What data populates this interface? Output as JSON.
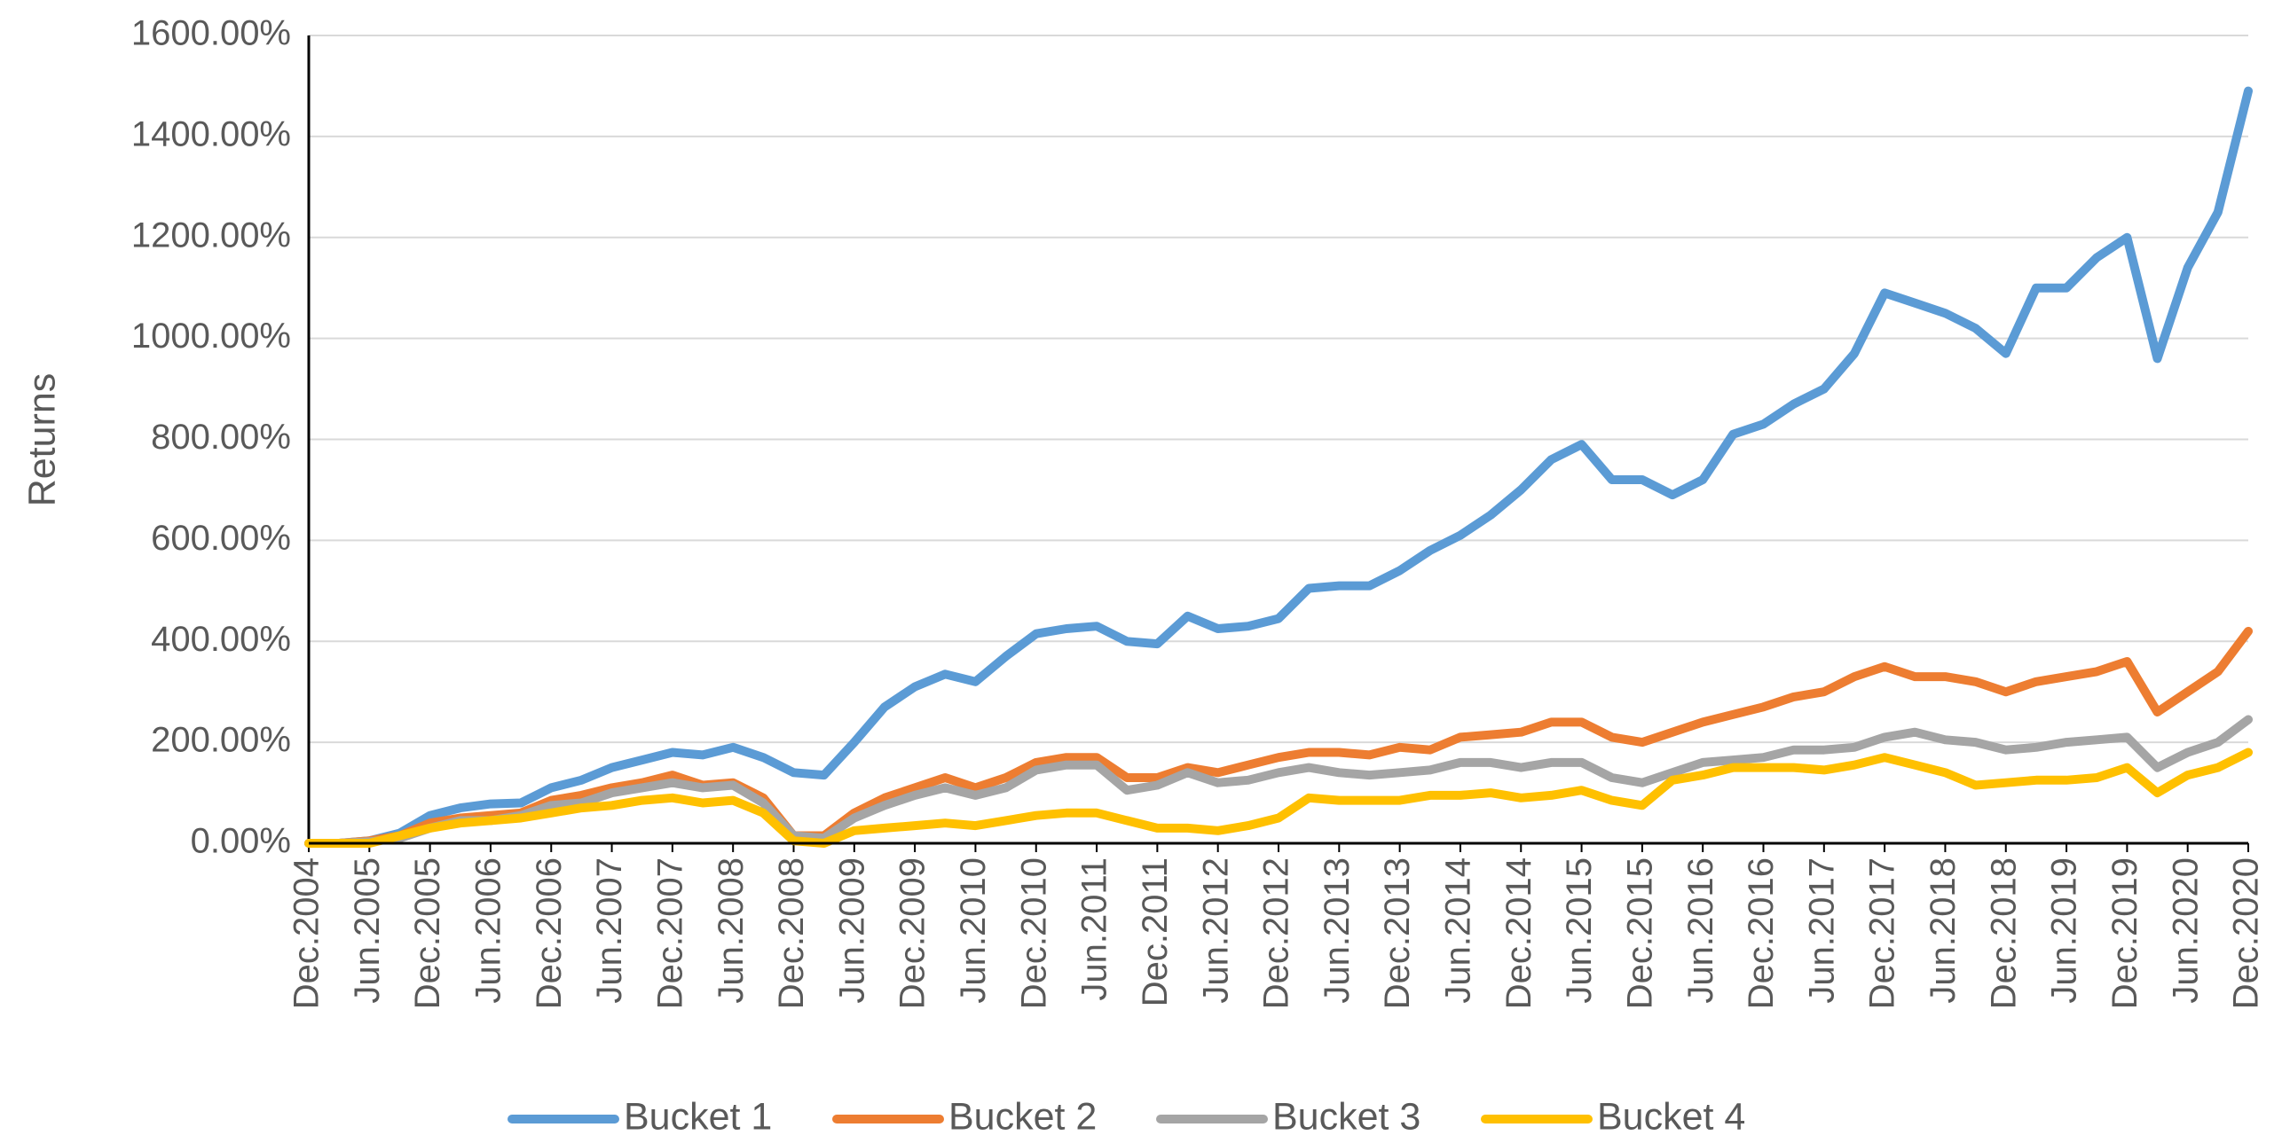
{
  "chart_data": {
    "type": "line",
    "y_label": "Returns",
    "x": [
      "Dec.2004",
      null,
      "Jun.2005",
      null,
      "Dec.2005",
      null,
      "Jun.2006",
      null,
      "Dec.2006",
      null,
      "Jun.2007",
      null,
      "Dec.2007",
      null,
      "Jun.2008",
      null,
      "Dec.2008",
      null,
      "Jun.2009",
      null,
      "Dec.2009",
      null,
      "Jun.2010",
      null,
      "Dec.2010",
      null,
      "Jun.2011",
      null,
      "Dec.2011",
      null,
      "Jun.2012",
      null,
      "Dec.2012",
      null,
      "Jun.2013",
      null,
      "Dec.2013",
      null,
      "Jun.2014",
      null,
      "Dec.2014",
      null,
      "Jun.2015",
      null,
      "Dec.2015",
      null,
      "Jun.2016",
      null,
      "Dec.2016",
      null,
      "Jun.2017",
      null,
      "Dec.2017",
      null,
      "Jun.2018",
      null,
      "Dec.2018",
      null,
      "Jun.2019",
      null,
      "Dec.2019",
      null,
      "Jun.2020",
      null,
      "Dec.2020"
    ],
    "series": [
      {
        "name": "Bucket 1",
        "color": "#5b9bd5",
        "values": [
          0,
          0,
          5,
          20,
          55,
          70,
          78,
          80,
          110,
          125,
          150,
          165,
          180,
          175,
          190,
          170,
          140,
          135,
          200,
          270,
          310,
          335,
          320,
          370,
          415,
          425,
          430,
          400,
          395,
          450,
          425,
          430,
          445,
          505,
          510,
          510,
          540,
          580,
          610,
          650,
          700,
          760,
          790,
          720,
          720,
          690,
          720,
          810,
          830,
          870,
          900,
          970,
          1090,
          1070,
          1050,
          1020,
          970,
          1100,
          1100,
          1160,
          1200,
          960,
          1140,
          1250,
          1490
        ]
      },
      {
        "name": "Bucket 2",
        "color": "#ed7d31",
        "values": [
          0,
          0,
          5,
          15,
          40,
          50,
          55,
          60,
          85,
          95,
          110,
          120,
          135,
          115,
          120,
          90,
          15,
          15,
          60,
          90,
          110,
          130,
          110,
          130,
          160,
          170,
          170,
          130,
          130,
          150,
          140,
          155,
          170,
          180,
          180,
          175,
          190,
          185,
          210,
          215,
          220,
          240,
          240,
          210,
          200,
          220,
          240,
          255,
          270,
          290,
          300,
          330,
          350,
          330,
          330,
          320,
          300,
          320,
          330,
          340,
          360,
          260,
          300,
          340,
          420
        ]
      },
      {
        "name": "Bucket 3",
        "color": "#a5a5a5",
        "values": [
          0,
          0,
          3,
          10,
          30,
          45,
          45,
          55,
          75,
          80,
          100,
          110,
          120,
          110,
          115,
          80,
          15,
          10,
          50,
          75,
          95,
          110,
          95,
          110,
          145,
          155,
          155,
          105,
          115,
          140,
          120,
          125,
          140,
          150,
          140,
          135,
          140,
          145,
          160,
          160,
          150,
          160,
          160,
          130,
          120,
          140,
          160,
          165,
          170,
          185,
          185,
          190,
          210,
          220,
          205,
          200,
          185,
          190,
          200,
          205,
          210,
          150,
          180,
          200,
          245
        ]
      },
      {
        "name": "Bucket 4",
        "color": "#ffc000",
        "values": [
          0,
          0,
          0,
          15,
          30,
          40,
          45,
          50,
          60,
          70,
          75,
          85,
          90,
          80,
          85,
          60,
          5,
          0,
          25,
          30,
          35,
          40,
          35,
          45,
          55,
          60,
          60,
          45,
          30,
          30,
          25,
          35,
          50,
          90,
          85,
          85,
          85,
          95,
          95,
          100,
          90,
          95,
          105,
          85,
          75,
          125,
          135,
          150,
          150,
          150,
          145,
          155,
          170,
          155,
          140,
          115,
          120,
          125,
          125,
          130,
          150,
          100,
          135,
          150,
          180
        ]
      }
    ],
    "ylim": [
      0,
      1600
    ],
    "yticks": [
      {
        "value": 0,
        "label": "0.00%"
      },
      {
        "value": 200,
        "label": "200.00%"
      },
      {
        "value": 400,
        "label": "400.00%"
      },
      {
        "value": 600,
        "label": "600.00%"
      },
      {
        "value": 800,
        "label": "800.00%"
      },
      {
        "value": 1000,
        "label": "1000.00%"
      },
      {
        "value": 1200,
        "label": "1200.00%"
      },
      {
        "value": 1400,
        "label": "1400.00%"
      },
      {
        "value": 1600,
        "label": "1600.00%"
      }
    ],
    "grid": true,
    "legend": "bottom"
  }
}
